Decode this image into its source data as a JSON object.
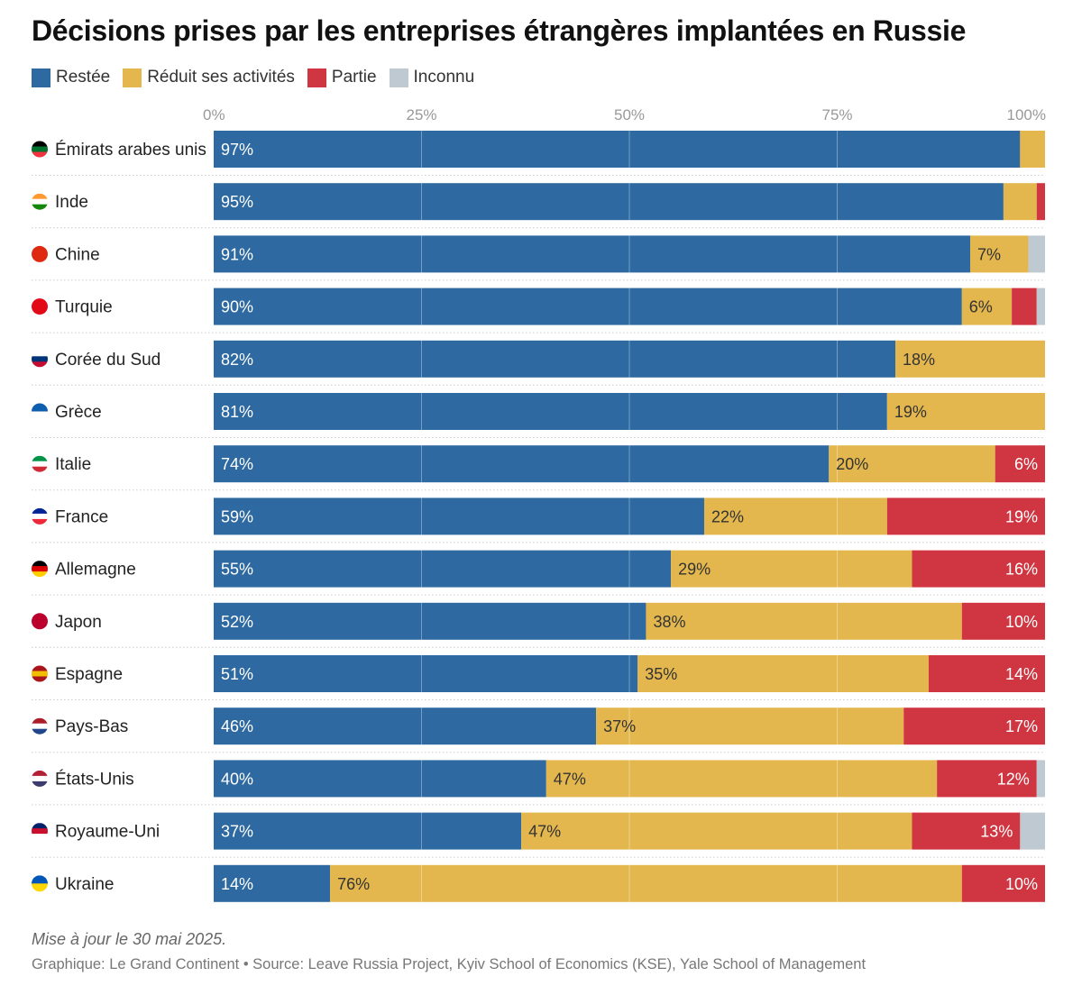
{
  "chart_data": {
    "type": "bar",
    "orientation": "horizontal",
    "stacked": true,
    "title": "Décisions prises par les entreprises étrangères implantées en Russie",
    "xlim": [
      0,
      100
    ],
    "x_ticks": [
      "0%",
      "25%",
      "50%",
      "75%",
      "100%"
    ],
    "grid": true,
    "legend_position": "top-left",
    "categories": [
      "Émirats arabes unis",
      "Inde",
      "Chine",
      "Turquie",
      "Corée du Sud",
      "Grèce",
      "Italie",
      "France",
      "Allemagne",
      "Japon",
      "Espagne",
      "Pays-Bas",
      "États-Unis",
      "Royaume-Uni",
      "Ukraine"
    ],
    "series": [
      {
        "name": "Restée",
        "color": "#2e6aa1",
        "values": [
          97,
          95,
          91,
          90,
          82,
          81,
          74,
          59,
          55,
          52,
          51,
          46,
          40,
          37,
          14
        ]
      },
      {
        "name": "Réduit ses activités",
        "color": "#e3b74e",
        "values": [
          3,
          4,
          7,
          6,
          18,
          19,
          20,
          22,
          29,
          38,
          35,
          37,
          47,
          47,
          76
        ]
      },
      {
        "name": "Partie",
        "color": "#cf3641",
        "values": [
          0,
          1,
          0,
          3,
          0,
          0,
          6,
          19,
          16,
          10,
          14,
          17,
          12,
          13,
          10
        ]
      },
      {
        "name": "Inconnu",
        "color": "#bfc9d1",
        "values": [
          0,
          0,
          2,
          1,
          0,
          0,
          0,
          0,
          0,
          0,
          0,
          0,
          1,
          3,
          0
        ]
      }
    ],
    "flags": [
      [
        "#000",
        "#00732f",
        "#ef3340"
      ],
      [
        "#ff9933",
        "#fff",
        "#138808"
      ],
      [
        "#de2910"
      ],
      [
        "#e30a17"
      ],
      [
        "#fff",
        "#003478",
        "#c60c30"
      ],
      [
        "#0d5eaf",
        "#fff"
      ],
      [
        "#009246",
        "#fff",
        "#ce2b37"
      ],
      [
        "#002395",
        "#fff",
        "#ed2939"
      ],
      [
        "#000",
        "#dd0000",
        "#ffce00"
      ],
      [
        "#bc002d"
      ],
      [
        "#aa151b",
        "#f1bf00",
        "#aa151b"
      ],
      [
        "#ae1c28",
        "#fff",
        "#21468b"
      ],
      [
        "#b22234",
        "#fff",
        "#3c3b6e"
      ],
      [
        "#012169",
        "#c8102e",
        "#fff"
      ],
      [
        "#0057b7",
        "#ffd700"
      ]
    ]
  },
  "footer": {
    "note": "Mise à jour le 30 mai 2025.",
    "source": "Graphique: Le Grand Continent • Source: Leave Russia Project, Kyiv School of Economics (KSE), Yale School of Management"
  }
}
